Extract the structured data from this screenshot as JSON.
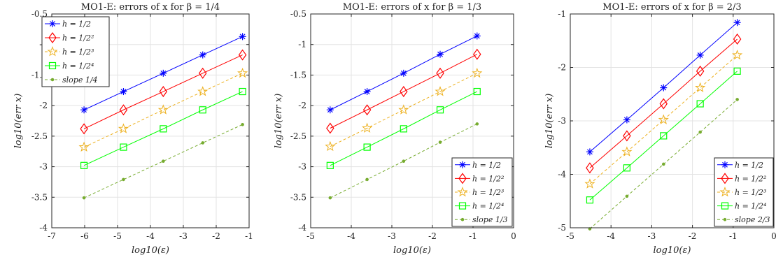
{
  "chart_data": [
    {
      "type": "line",
      "title": "MO1-E: errors of x for β = 1/4",
      "xlabel": "log10(ε)",
      "ylabel": "log10(err x)",
      "xlim": [
        -7,
        -1
      ],
      "ylim": [
        -4,
        -0.5
      ],
      "xticks": [
        "-7",
        "-6",
        "-5",
        "-4",
        "-3",
        "-2",
        "-1"
      ],
      "yticks": [
        "-4",
        "-3.5",
        "-3",
        "-2.5",
        "-2",
        "-1.5",
        "-1",
        "-0.5"
      ],
      "grid": true,
      "legend_position": "top-left",
      "x": [
        -6.02,
        -4.82,
        -3.61,
        -2.41,
        -1.2
      ],
      "series": [
        {
          "name": "h = 1/2",
          "values": [
            -2.07,
            -1.77,
            -1.47,
            -1.17,
            -0.87
          ],
          "color": "#0000FF",
          "marker": "asterisk",
          "dash": "solid"
        },
        {
          "name": "h = 1/2²",
          "values": [
            -2.38,
            -2.07,
            -1.77,
            -1.47,
            -1.17
          ],
          "color": "#FF0000",
          "marker": "diamond",
          "dash": "solid"
        },
        {
          "name": "h = 1/2³",
          "values": [
            -2.68,
            -2.38,
            -2.07,
            -1.77,
            -1.47
          ],
          "color": "#EDB120",
          "marker": "pentagram",
          "dash": "dashed"
        },
        {
          "name": "h = 1/2⁴",
          "values": [
            -2.98,
            -2.68,
            -2.38,
            -2.07,
            -1.77
          ],
          "color": "#00FF00",
          "marker": "square",
          "dash": "solid"
        },
        {
          "name": "slope 1/4",
          "values": [
            -3.51,
            -3.21,
            -2.91,
            -2.61,
            -2.31
          ],
          "color": "#77AC30",
          "marker": "dot",
          "dash": "dashed"
        }
      ]
    },
    {
      "type": "line",
      "title": "MO1-E: errors of x for β = 1/3",
      "xlabel": "log10(ε)",
      "ylabel": "log10(err x)",
      "xlim": [
        -5,
        0
      ],
      "ylim": [
        -4,
        -0.5
      ],
      "xticks": [
        "-5",
        "-4",
        "-3",
        "-2",
        "-1",
        "0"
      ],
      "yticks": [
        "-4",
        "-3.5",
        "-3",
        "-2.5",
        "-2",
        "-1.5",
        "-1",
        "-0.5"
      ],
      "grid": true,
      "legend_position": "bottom-right",
      "x": [
        -4.52,
        -3.61,
        -2.71,
        -1.81,
        -0.9
      ],
      "series": [
        {
          "name": "h = 1/2",
          "values": [
            -2.07,
            -1.77,
            -1.47,
            -1.16,
            -0.86
          ],
          "color": "#0000FF",
          "marker": "asterisk",
          "dash": "solid"
        },
        {
          "name": "h = 1/2²",
          "values": [
            -2.37,
            -2.07,
            -1.77,
            -1.47,
            -1.16
          ],
          "color": "#FF0000",
          "marker": "diamond",
          "dash": "solid"
        },
        {
          "name": "h = 1/2³",
          "values": [
            -2.67,
            -2.37,
            -2.07,
            -1.77,
            -1.47
          ],
          "color": "#EDB120",
          "marker": "pentagram",
          "dash": "dashed"
        },
        {
          "name": "h = 1/2⁴",
          "values": [
            -2.98,
            -2.68,
            -2.38,
            -2.07,
            -1.77
          ],
          "color": "#00FF00",
          "marker": "square",
          "dash": "solid"
        },
        {
          "name": "slope 1/3",
          "values": [
            -3.51,
            -3.21,
            -2.91,
            -2.6,
            -2.3
          ],
          "color": "#77AC30",
          "marker": "dot",
          "dash": "dashed"
        }
      ]
    },
    {
      "type": "line",
      "title": "MO1-E: errors of x for β = 2/3",
      "xlabel": "log10(ε)",
      "ylabel": "log10(err x)",
      "xlim": [
        -5,
        0
      ],
      "ylim": [
        -5,
        -1
      ],
      "xticks": [
        "-5",
        "-4",
        "-3",
        "-2",
        "-1",
        "0"
      ],
      "yticks": [
        "-5",
        "-4",
        "-3",
        "-2",
        "-1"
      ],
      "grid": true,
      "legend_position": "bottom-right",
      "x": [
        -4.52,
        -3.61,
        -2.71,
        -1.81,
        -0.9
      ],
      "series": [
        {
          "name": "h = 1/2",
          "values": [
            -3.58,
            -2.98,
            -2.38,
            -1.77,
            -1.16
          ],
          "color": "#0000FF",
          "marker": "asterisk",
          "dash": "solid"
        },
        {
          "name": "h = 1/2²",
          "values": [
            -3.88,
            -3.28,
            -2.68,
            -2.07,
            -1.47
          ],
          "color": "#FF0000",
          "marker": "diamond",
          "dash": "solid"
        },
        {
          "name": "h = 1/2³",
          "values": [
            -4.18,
            -3.58,
            -2.98,
            -2.38,
            -1.77
          ],
          "color": "#EDB120",
          "marker": "pentagram",
          "dash": "dashed"
        },
        {
          "name": "h = 1/2⁴",
          "values": [
            -4.48,
            -3.88,
            -3.28,
            -2.68,
            -2.07
          ],
          "color": "#00FF00",
          "marker": "square",
          "dash": "solid"
        },
        {
          "name": "slope 2/3",
          "values": [
            -5.02,
            -4.41,
            -3.81,
            -3.21,
            -2.6
          ],
          "color": "#77AC30",
          "marker": "dot",
          "dash": "dashed"
        }
      ]
    }
  ]
}
